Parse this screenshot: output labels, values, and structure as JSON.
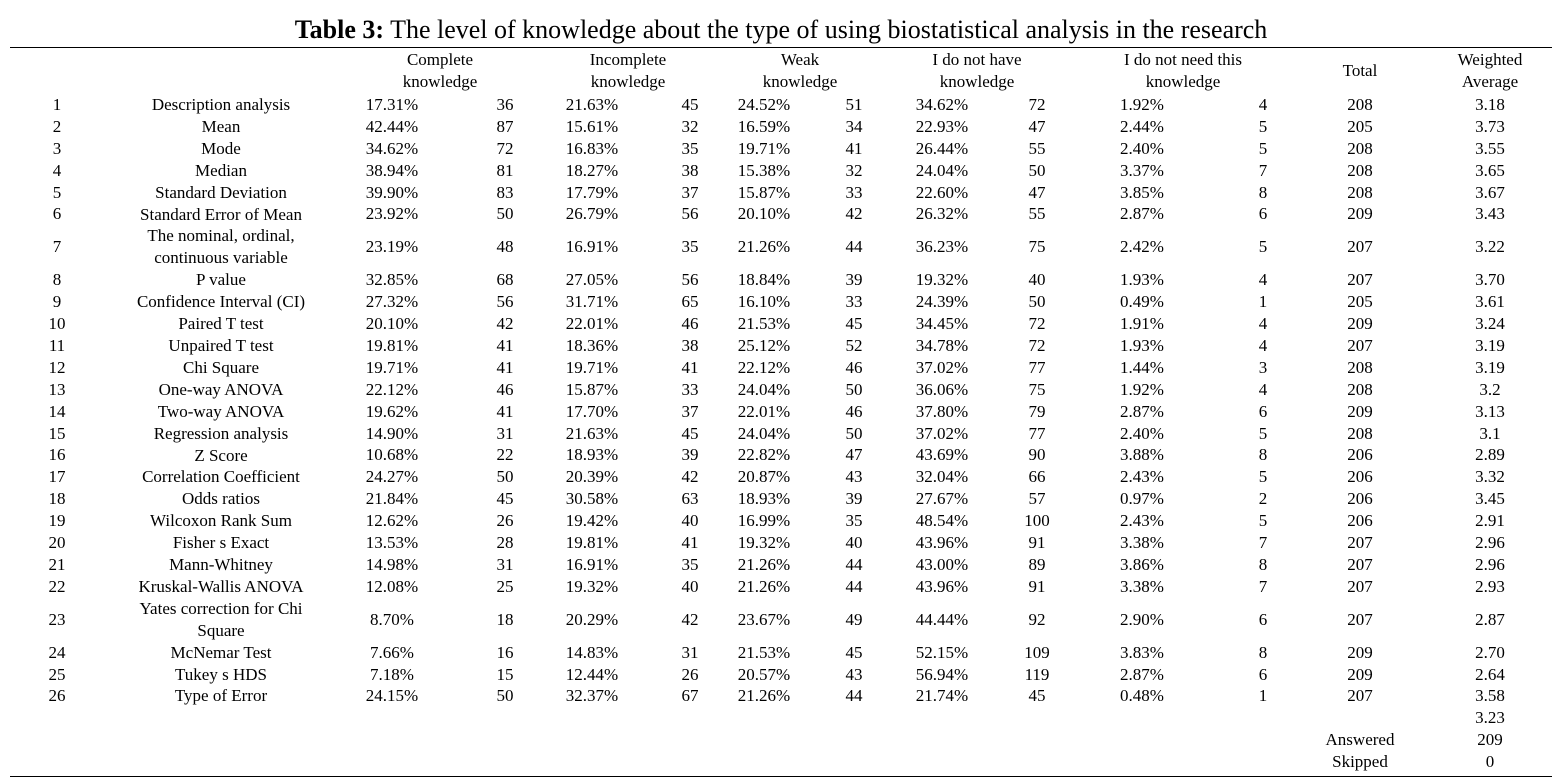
{
  "title": {
    "label": "Table 3:",
    "text": "The level of knowledge about the type of using biostatistical analysis in the research"
  },
  "table": {
    "headers": [
      "Complete knowledge",
      "Incomplete knowledge",
      "Weak knowledge",
      "I do not have knowledge",
      "I do not need this knowledge",
      "Total",
      "Weighted Average"
    ],
    "rows": [
      [
        "1",
        "Description analysis",
        "17.31%",
        "36",
        "21.63%",
        "45",
        "24.52%",
        "51",
        "34.62%",
        "72",
        "1.92%",
        "4",
        "208",
        "3.18"
      ],
      [
        "2",
        "Mean",
        "42.44%",
        "87",
        "15.61%",
        "32",
        "16.59%",
        "34",
        "22.93%",
        "47",
        "2.44%",
        "5",
        "205",
        "3.73"
      ],
      [
        "3",
        "Mode",
        "34.62%",
        "72",
        "16.83%",
        "35",
        "19.71%",
        "41",
        "26.44%",
        "55",
        "2.40%",
        "5",
        "208",
        "3.55"
      ],
      [
        "4",
        "Median",
        "38.94%",
        "81",
        "18.27%",
        "38",
        "15.38%",
        "32",
        "24.04%",
        "50",
        "3.37%",
        "7",
        "208",
        "3.65"
      ],
      [
        "5",
        "Standard Deviation",
        "39.90%",
        "83",
        "17.79%",
        "37",
        "15.87%",
        "33",
        "22.60%",
        "47",
        "3.85%",
        "8",
        "208",
        "3.67"
      ],
      [
        "6",
        "Standard Error of Mean",
        "23.92%",
        "50",
        "26.79%",
        "56",
        "20.10%",
        "42",
        "26.32%",
        "55",
        "2.87%",
        "6",
        "209",
        "3.43"
      ],
      [
        "7",
        "The nominal, ordinal, continuous variable",
        "23.19%",
        "48",
        "16.91%",
        "35",
        "21.26%",
        "44",
        "36.23%",
        "75",
        "2.42%",
        "5",
        "207",
        "3.22"
      ],
      [
        "8",
        "P value",
        "32.85%",
        "68",
        "27.05%",
        "56",
        "18.84%",
        "39",
        "19.32%",
        "40",
        "1.93%",
        "4",
        "207",
        "3.70"
      ],
      [
        "9",
        "Confidence Interval (CI)",
        "27.32%",
        "56",
        "31.71%",
        "65",
        "16.10%",
        "33",
        "24.39%",
        "50",
        "0.49%",
        "1",
        "205",
        "3.61"
      ],
      [
        "10",
        "Paired T test",
        "20.10%",
        "42",
        "22.01%",
        "46",
        "21.53%",
        "45",
        "34.45%",
        "72",
        "1.91%",
        "4",
        "209",
        "3.24"
      ],
      [
        "11",
        "Unpaired T test",
        "19.81%",
        "41",
        "18.36%",
        "38",
        "25.12%",
        "52",
        "34.78%",
        "72",
        "1.93%",
        "4",
        "207",
        "3.19"
      ],
      [
        "12",
        "Chi Square",
        "19.71%",
        "41",
        "19.71%",
        "41",
        "22.12%",
        "46",
        "37.02%",
        "77",
        "1.44%",
        "3",
        "208",
        "3.19"
      ],
      [
        "13",
        "One-way ANOVA",
        "22.12%",
        "46",
        "15.87%",
        "33",
        "24.04%",
        "50",
        "36.06%",
        "75",
        "1.92%",
        "4",
        "208",
        "3.2"
      ],
      [
        "14",
        "Two-way ANOVA",
        "19.62%",
        "41",
        "17.70%",
        "37",
        "22.01%",
        "46",
        "37.80%",
        "79",
        "2.87%",
        "6",
        "209",
        "3.13"
      ],
      [
        "15",
        "Regression analysis",
        "14.90%",
        "31",
        "21.63%",
        "45",
        "24.04%",
        "50",
        "37.02%",
        "77",
        "2.40%",
        "5",
        "208",
        "3.1"
      ],
      [
        "16",
        "Z Score",
        "10.68%",
        "22",
        "18.93%",
        "39",
        "22.82%",
        "47",
        "43.69%",
        "90",
        "3.88%",
        "8",
        "206",
        "2.89"
      ],
      [
        "17",
        "Correlation Coefficient",
        "24.27%",
        "50",
        "20.39%",
        "42",
        "20.87%",
        "43",
        "32.04%",
        "66",
        "2.43%",
        "5",
        "206",
        "3.32"
      ],
      [
        "18",
        "Odds ratios",
        "21.84%",
        "45",
        "30.58%",
        "63",
        "18.93%",
        "39",
        "27.67%",
        "57",
        "0.97%",
        "2",
        "206",
        "3.45"
      ],
      [
        "19",
        "Wilcoxon Rank Sum",
        "12.62%",
        "26",
        "19.42%",
        "40",
        "16.99%",
        "35",
        "48.54%",
        "100",
        "2.43%",
        "5",
        "206",
        "2.91"
      ],
      [
        "20",
        "Fisher s Exact",
        "13.53%",
        "28",
        "19.81%",
        "41",
        "19.32%",
        "40",
        "43.96%",
        "91",
        "3.38%",
        "7",
        "207",
        "2.96"
      ],
      [
        "21",
        "Mann-Whitney",
        "14.98%",
        "31",
        "16.91%",
        "35",
        "21.26%",
        "44",
        "43.00%",
        "89",
        "3.86%",
        "8",
        "207",
        "2.96"
      ],
      [
        "22",
        "Kruskal-Wallis ANOVA",
        "12.08%",
        "25",
        "19.32%",
        "40",
        "21.26%",
        "44",
        "43.96%",
        "91",
        "3.38%",
        "7",
        "207",
        "2.93"
      ],
      [
        "23",
        "Yates correction for Chi Square",
        "8.70%",
        "18",
        "20.29%",
        "42",
        "23.67%",
        "49",
        "44.44%",
        "92",
        "2.90%",
        "6",
        "207",
        "2.87"
      ],
      [
        "24",
        "McNemar Test",
        "7.66%",
        "16",
        "14.83%",
        "31",
        "21.53%",
        "45",
        "52.15%",
        "109",
        "3.83%",
        "8",
        "209",
        "2.70"
      ],
      [
        "25",
        "Tukey s HDS",
        "7.18%",
        "15",
        "12.44%",
        "26",
        "20.57%",
        "43",
        "56.94%",
        "119",
        "2.87%",
        "6",
        "209",
        "2.64"
      ],
      [
        "26",
        "Type of Error",
        "24.15%",
        "50",
        "32.37%",
        "67",
        "21.26%",
        "44",
        "21.74%",
        "45",
        "0.48%",
        "1",
        "207",
        "3.58"
      ]
    ],
    "footer": [
      [
        "",
        "3.23"
      ],
      [
        "Answered",
        "209"
      ],
      [
        "Skipped",
        "0"
      ]
    ]
  }
}
